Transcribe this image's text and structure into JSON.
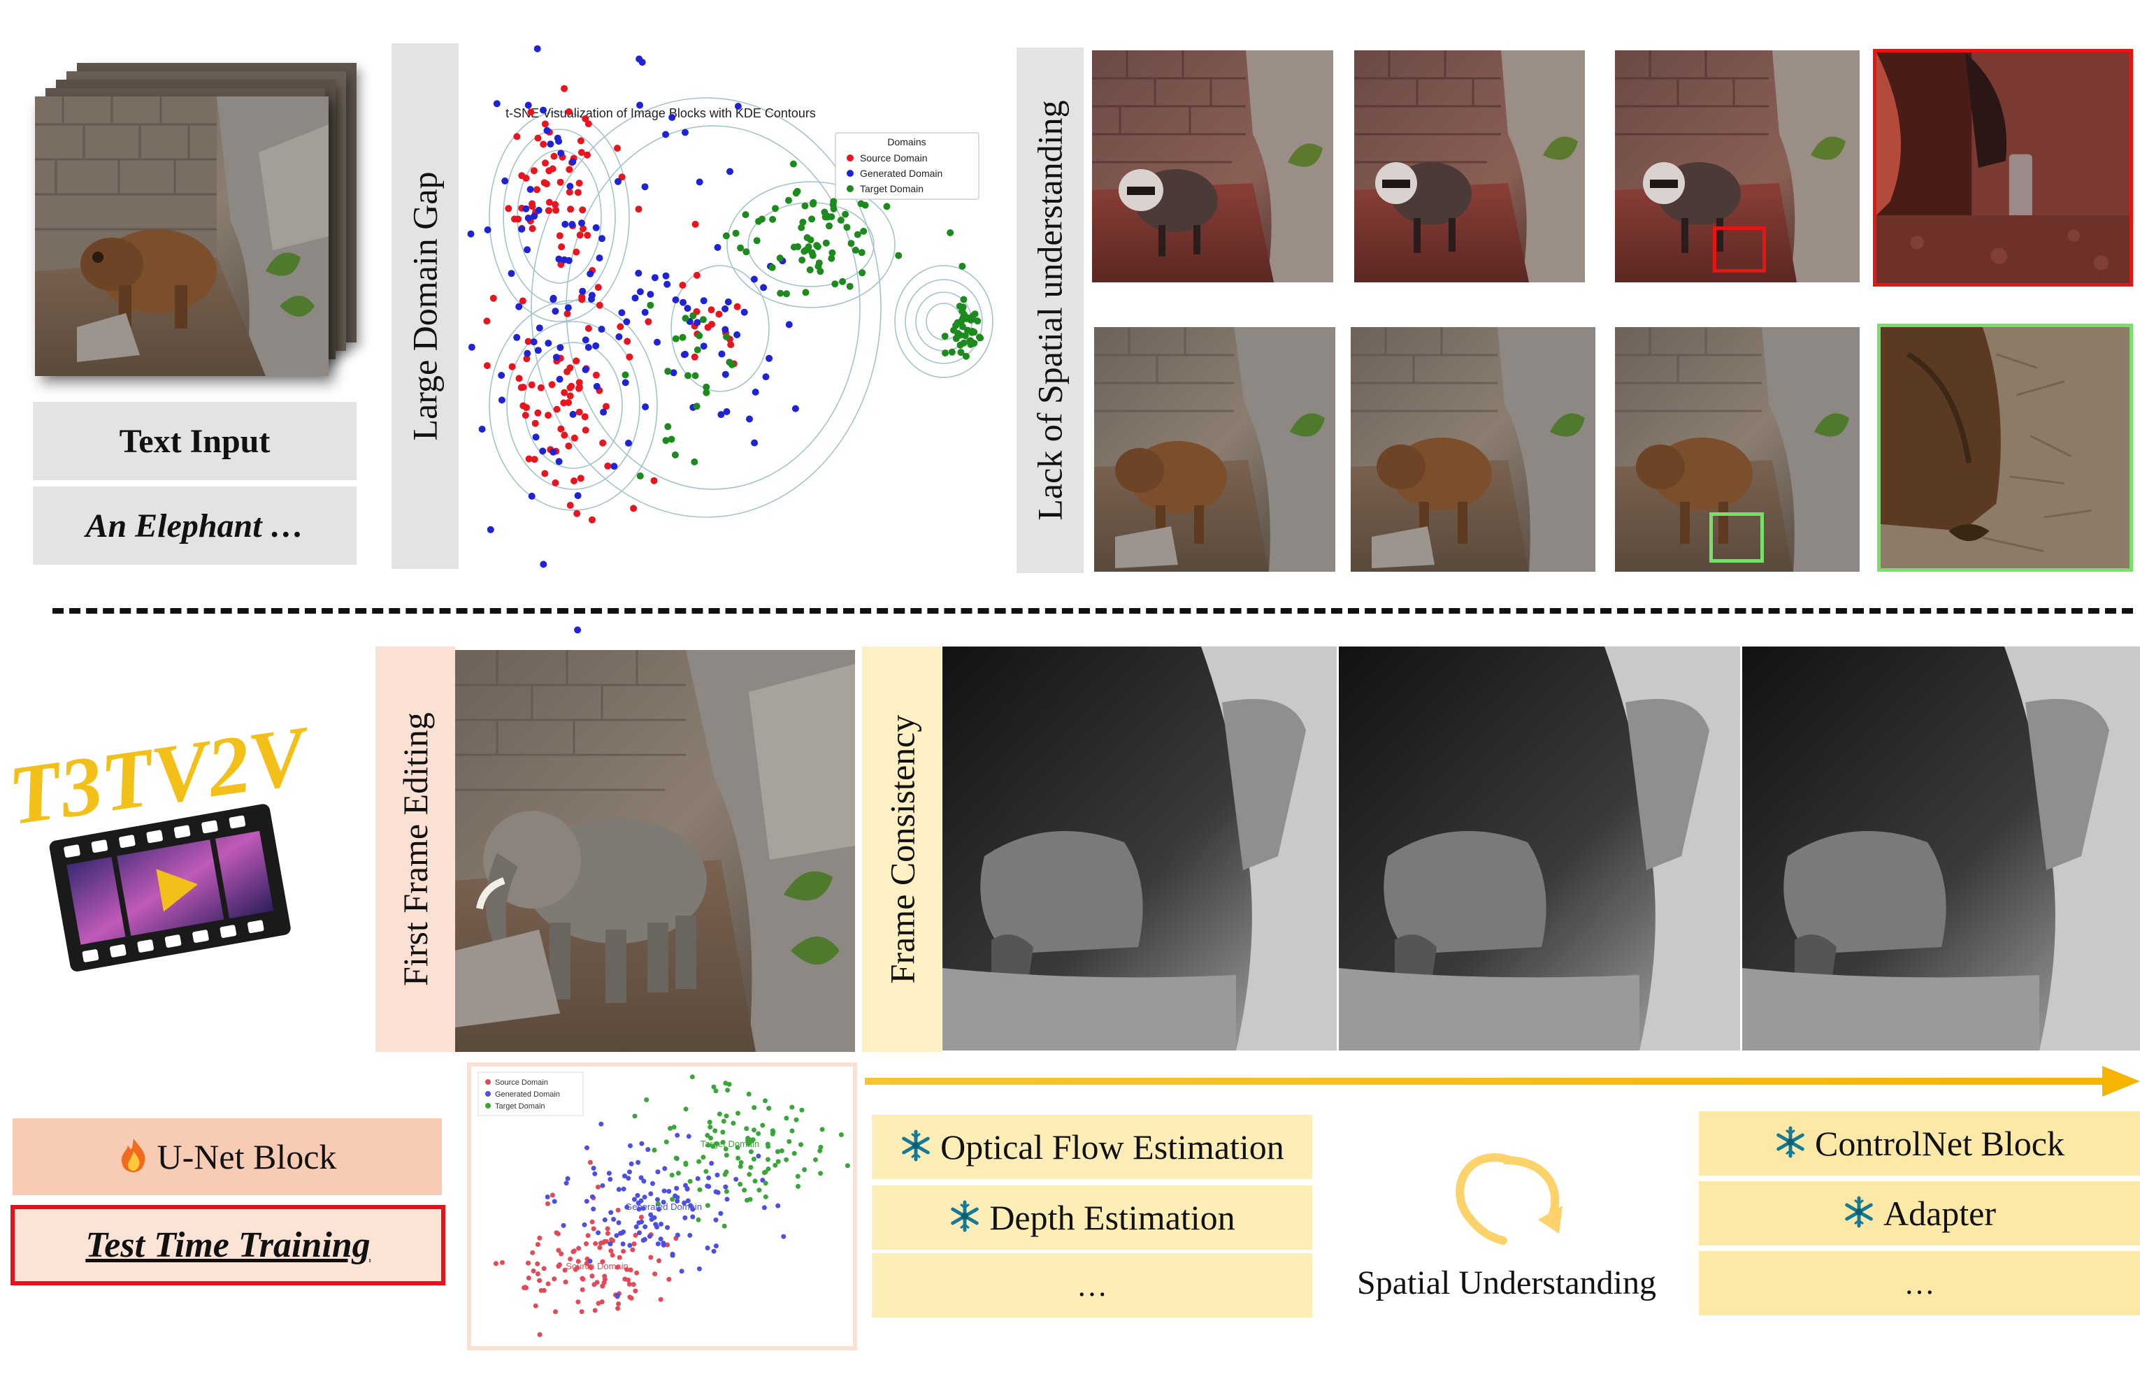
{
  "top": {
    "text_input_label": "Text Input",
    "prompt_text": "An Elephant …",
    "domain_gap_label": "Large Domain Gap",
    "spatial_label": "Lack of Spatial understanding",
    "tsne": {
      "title": "t-SNE Visualization of Image Blocks with KDE Contours",
      "legend_title": "Domains",
      "legend": [
        "Source Domain",
        "Generated Domain",
        "Target Domain"
      ],
      "colors": {
        "source": "#e8141e",
        "generated": "#1f23d6",
        "target": "#1c8a1c"
      }
    }
  },
  "bottom": {
    "logo_text": "T3TV2V",
    "first_frame_label": "First Frame Editing",
    "frame_consistency_label": "Frame Consistency",
    "unet_label": "U-Net Block",
    "ttt_label": "Test Time Training",
    "flow_label": "Optical Flow Estimation",
    "depth_label": "Depth Estimation",
    "ellipsis_left": "…",
    "spatial_understanding": "Spatial Understanding",
    "controlnet_label": "ControlNet Block",
    "adapter_label": "Adapter",
    "ellipsis_right": "…",
    "scatter": {
      "legend": [
        "Source Domain",
        "Generated Domain",
        "Target Domain"
      ],
      "cluster_labels": [
        "Source Domain",
        "Generated Domain",
        "Target Domain"
      ],
      "colors": {
        "source": "#e34a55",
        "generated": "#4c4fe0",
        "target": "#3aa63a"
      }
    }
  },
  "icons": {
    "fire": "fire-icon",
    "snowflake": "snowflake-icon",
    "cycle": "cycle-arrow-icon",
    "film": "film-strip-icon"
  }
}
